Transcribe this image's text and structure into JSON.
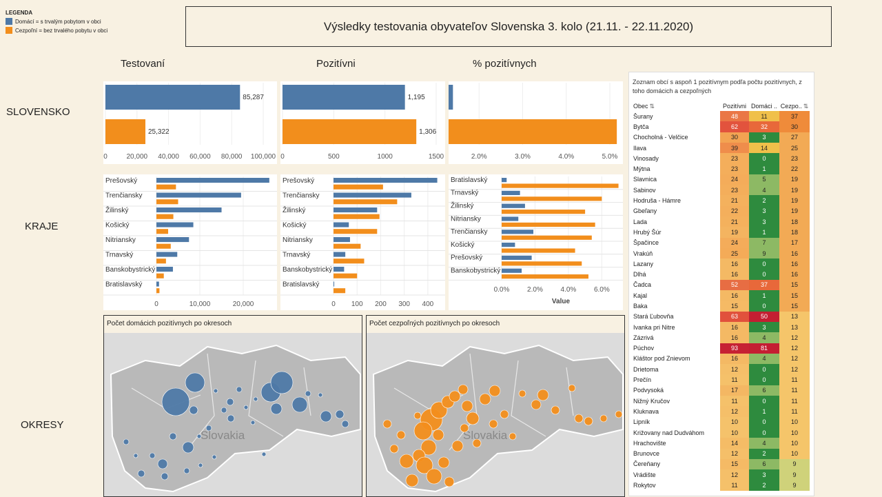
{
  "legend": {
    "title": "LEGENDA",
    "domestic": "Domácí = s trvalým pobytom v obci",
    "nonresident": "Cezpoľní = bez trvalého pobytu v obci",
    "domestic_color": "#4e79a7",
    "nonresident_color": "#f28e1c"
  },
  "title": "Výsledky testovania obyvateľov Slovenska 3. kolo (21.11. - 22.11.2020)",
  "columns": {
    "tested": "Testovaní",
    "positive": "Pozitívni",
    "pct": "% pozitívnych"
  },
  "rows": {
    "slovakia": "SLOVENSKO",
    "regions": "KRAJE",
    "districts": "OKRESY"
  },
  "chart_data": [
    {
      "type": "bar",
      "title": "Testovaní – Slovensko",
      "categories": [
        "Domácí",
        "Cezpoľní"
      ],
      "values": [
        85287,
        25322
      ],
      "labels": [
        "85,287",
        "25,322"
      ],
      "xlim": [
        0,
        100000
      ],
      "ticks": [
        0,
        20000,
        40000,
        60000,
        80000,
        100000
      ],
      "tick_labels": [
        "0",
        "20,000",
        "40,000",
        "60,000",
        "80,000",
        "100,000"
      ]
    },
    {
      "type": "bar",
      "title": "Pozitívni – Slovensko",
      "categories": [
        "Domácí",
        "Cezpoľní"
      ],
      "values": [
        1195,
        1306
      ],
      "labels": [
        "1,195",
        "1,306"
      ],
      "xlim": [
        0,
        1500
      ],
      "ticks": [
        0,
        500,
        1000,
        1500
      ],
      "tick_labels": [
        "0",
        "500",
        "1000",
        "1500"
      ]
    },
    {
      "type": "bar",
      "title": "% pozitívnych – Slovensko",
      "categories": [
        "Domácí",
        "Cezpoľní"
      ],
      "values": [
        1.4,
        5.16
      ],
      "xlim": [
        1.3,
        5.3
      ],
      "ticks": [
        2,
        3,
        4,
        5
      ],
      "tick_labels": [
        "2.0%",
        "3.0%",
        "4.0%",
        "5.0%"
      ]
    },
    {
      "type": "bar",
      "title": "Testovaní – Kraje",
      "categories": [
        "Prešovský",
        "Trenčiansky",
        "Žilinský",
        "Košický",
        "Nitriansky",
        "Trnavský",
        "Banskobystrický",
        "Bratislavský"
      ],
      "series": [
        {
          "name": "Domácí",
          "values": [
            26000,
            19500,
            15000,
            8500,
            7500,
            4800,
            3800,
            600
          ]
        },
        {
          "name": "Cezpoľní",
          "values": [
            4500,
            5000,
            3900,
            2700,
            3300,
            2200,
            1700,
            700
          ]
        }
      ],
      "xlim": [
        0,
        26500
      ],
      "ticks": [
        0,
        10000,
        20000
      ],
      "tick_labels": [
        "0",
        "10,000",
        "20,000"
      ]
    },
    {
      "type": "bar",
      "title": "Pozitívni – Kraje",
      "categories": [
        "Prešovský",
        "Trenčiansky",
        "Žilinský",
        "Košický",
        "Nitriansky",
        "Trnavský",
        "Banskobystrický",
        "Bratislavský"
      ],
      "series": [
        {
          "name": "Domácí",
          "values": [
            440,
            330,
            185,
            65,
            70,
            50,
            45,
            3
          ]
        },
        {
          "name": "Cezpoľní",
          "values": [
            210,
            270,
            195,
            185,
            115,
            130,
            100,
            50
          ]
        }
      ],
      "xlim": [
        0,
        450
      ],
      "ticks": [
        0,
        100,
        200,
        300,
        400
      ],
      "tick_labels": [
        "0",
        "100",
        "200",
        "300",
        "400"
      ]
    },
    {
      "type": "bar",
      "title": "% pozitívnych – Kraje",
      "categories": [
        "Bratislavský",
        "Trnavský",
        "Žilinský",
        "Nitriansky",
        "Trenčiansky",
        "Košický",
        "Prešovský",
        "Banskobystrický"
      ],
      "series": [
        {
          "name": "Domácí",
          "values": [
            0.3,
            1.1,
            1.4,
            1.0,
            1.9,
            0.8,
            1.8,
            1.2
          ]
        },
        {
          "name": "Cezpoľní",
          "values": [
            7.0,
            6.0,
            5.0,
            5.6,
            5.4,
            4.4,
            4.8,
            5.2
          ]
        }
      ],
      "xlabel": "Value",
      "xlim": [
        0,
        7.1
      ],
      "ticks": [
        0,
        2,
        4,
        6
      ],
      "tick_labels": [
        "0.0%",
        "2.0%",
        "4.0%",
        "6.0%"
      ]
    }
  ],
  "maps": {
    "domestic_title": "Počet domácich pozitívnych po okresoch",
    "nonresident_title": "Počet cezpoľných pozitívnych po okresoch",
    "country_label": "Slovakia"
  },
  "table": {
    "caption": "Zoznam obcí s aspoň 1 pozitívnym podľa počtu pozitívnych, z toho domácich a cezpoľných",
    "headers": [
      "Obec",
      "Pozitívni",
      "Domáci ..",
      "Cezpo.."
    ],
    "rows": [
      [
        "Šurany",
        "48",
        "11",
        "37"
      ],
      [
        "Bytča",
        "62",
        "32",
        "30"
      ],
      [
        "Chocholná - Velčice",
        "30",
        "3",
        "27"
      ],
      [
        "Ilava",
        "39",
        "14",
        "25"
      ],
      [
        "Vinosady",
        "23",
        "0",
        "23"
      ],
      [
        "Mýtna",
        "23",
        "1",
        "22"
      ],
      [
        "Slavnica",
        "24",
        "5",
        "19"
      ],
      [
        "Sabinov",
        "23",
        "4",
        "19"
      ],
      [
        "Hodruša - Hámre",
        "21",
        "2",
        "19"
      ],
      [
        "Gbeľany",
        "22",
        "3",
        "19"
      ],
      [
        "Lada",
        "21",
        "3",
        "18"
      ],
      [
        "Hrubý Šúr",
        "19",
        "1",
        "18"
      ],
      [
        "Špačince",
        "24",
        "7",
        "17"
      ],
      [
        "Vrakúň",
        "25",
        "9",
        "16"
      ],
      [
        "Lazany",
        "16",
        "0",
        "16"
      ],
      [
        "Dlhá",
        "16",
        "0",
        "16"
      ],
      [
        "Čadca",
        "52",
        "37",
        "15"
      ],
      [
        "Kajal",
        "16",
        "1",
        "15"
      ],
      [
        "Baka",
        "15",
        "0",
        "15"
      ],
      [
        "Stará Ľubovňa",
        "63",
        "50",
        "13"
      ],
      [
        "Ivanka pri Nitre",
        "16",
        "3",
        "13"
      ],
      [
        "Zázrivá",
        "16",
        "4",
        "12"
      ],
      [
        "Púchov",
        "93",
        "81",
        "12"
      ],
      [
        "Kláštor pod Znievom",
        "16",
        "4",
        "12"
      ],
      [
        "Drietoma",
        "12",
        "0",
        "12"
      ],
      [
        "Prečín",
        "11",
        "0",
        "11"
      ],
      [
        "Podvysoká",
        "17",
        "6",
        "11"
      ],
      [
        "Nižný Kručov",
        "11",
        "0",
        "11"
      ],
      [
        "Kluknava",
        "12",
        "1",
        "11"
      ],
      [
        "Lipník",
        "10",
        "0",
        "10"
      ],
      [
        "Križovany nad Dudváhom",
        "10",
        "0",
        "10"
      ],
      [
        "Hrachovište",
        "14",
        "4",
        "10"
      ],
      [
        "Brunovce",
        "12",
        "2",
        "10"
      ],
      [
        "Čereňany",
        "15",
        "6",
        "9"
      ],
      [
        "Vrádište",
        "12",
        "3",
        "9"
      ],
      [
        "Rokytov",
        "11",
        "2",
        "9"
      ]
    ]
  }
}
